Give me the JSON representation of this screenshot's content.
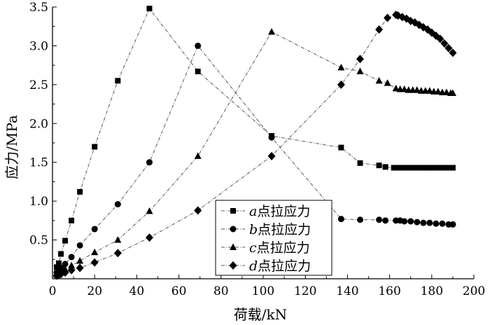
{
  "chart_data": {
    "type": "line",
    "xlabel": "荷载/kN",
    "ylabel": "应力/MPa",
    "xlim": [
      0,
      200
    ],
    "ylim": [
      0,
      3.5
    ],
    "x_ticks": [
      "0",
      "20",
      "40",
      "60",
      "80",
      "100",
      "120",
      "140",
      "160",
      "180",
      "200"
    ],
    "y_ticks": [
      "0.5",
      "1.0",
      "1.5",
      "2.0",
      "2.5",
      "3.0",
      "3.5"
    ],
    "x_tick_values": [
      0,
      20,
      40,
      60,
      80,
      100,
      120,
      140,
      160,
      180,
      200
    ],
    "y_tick_values": [
      0.5,
      1.0,
      1.5,
      2.0,
      2.5,
      3.0,
      3.5
    ],
    "grid": false,
    "legend_position": "bottom-center",
    "series": [
      {
        "name_prefix": "a",
        "name_suffix": "点拉应力",
        "marker": "square",
        "x": [
          2,
          3,
          4,
          6,
          9,
          13,
          20,
          31,
          46,
          69,
          104,
          137,
          146,
          155,
          158,
          162,
          164,
          166,
          168,
          170,
          172,
          174,
          176,
          178,
          180,
          182,
          184,
          186,
          188,
          190
        ],
        "y": [
          0.15,
          0.2,
          0.32,
          0.49,
          0.75,
          1.12,
          1.7,
          2.55,
          3.48,
          2.67,
          1.84,
          1.69,
          1.49,
          1.46,
          1.44,
          1.43,
          1.43,
          1.43,
          1.43,
          1.43,
          1.43,
          1.43,
          1.43,
          1.43,
          1.43,
          1.43,
          1.43,
          1.43,
          1.43,
          1.43
        ]
      },
      {
        "name_prefix": "b",
        "name_suffix": "点拉应力",
        "marker": "circle",
        "x": [
          2,
          3,
          4,
          6,
          9,
          13,
          20,
          31,
          46,
          69,
          104,
          137,
          146,
          155,
          158,
          163,
          165,
          167,
          170,
          173,
          176,
          179,
          182,
          185,
          188,
          190
        ],
        "y": [
          0.08,
          0.11,
          0.14,
          0.19,
          0.28,
          0.43,
          0.64,
          0.96,
          1.5,
          3.0,
          1.82,
          0.77,
          0.76,
          0.76,
          0.75,
          0.75,
          0.75,
          0.74,
          0.74,
          0.73,
          0.72,
          0.72,
          0.71,
          0.71,
          0.7,
          0.7
        ]
      },
      {
        "name_prefix": "c",
        "name_suffix": "点拉应力",
        "marker": "triangle",
        "x": [
          2,
          3,
          4,
          6,
          9,
          13,
          20,
          31,
          46,
          69,
          104,
          137,
          146,
          155,
          159,
          163,
          165,
          167,
          169,
          171,
          173,
          175,
          177,
          179,
          181,
          183,
          185,
          187,
          189,
          190
        ],
        "y": [
          0.05,
          0.07,
          0.09,
          0.12,
          0.17,
          0.23,
          0.34,
          0.5,
          0.87,
          1.58,
          3.18,
          2.72,
          2.67,
          2.55,
          2.52,
          2.45,
          2.44,
          2.44,
          2.43,
          2.43,
          2.43,
          2.42,
          2.42,
          2.42,
          2.41,
          2.41,
          2.4,
          2.4,
          2.39,
          2.39
        ]
      },
      {
        "name_prefix": "d",
        "name_suffix": "点拉应力",
        "marker": "diamond",
        "x": [
          2,
          3,
          4,
          6,
          9,
          13,
          20,
          31,
          46,
          69,
          104,
          137,
          146,
          155,
          159,
          163,
          164,
          166,
          168,
          170,
          172,
          174,
          176,
          178,
          180,
          182,
          184,
          186,
          188,
          190
        ],
        "y": [
          0.04,
          0.05,
          0.06,
          0.08,
          0.11,
          0.14,
          0.21,
          0.33,
          0.53,
          0.88,
          1.58,
          2.5,
          2.83,
          3.21,
          3.36,
          3.4,
          3.39,
          3.37,
          3.35,
          3.32,
          3.3,
          3.27,
          3.24,
          3.21,
          3.17,
          3.13,
          3.09,
          3.03,
          2.97,
          2.91
        ]
      }
    ]
  }
}
